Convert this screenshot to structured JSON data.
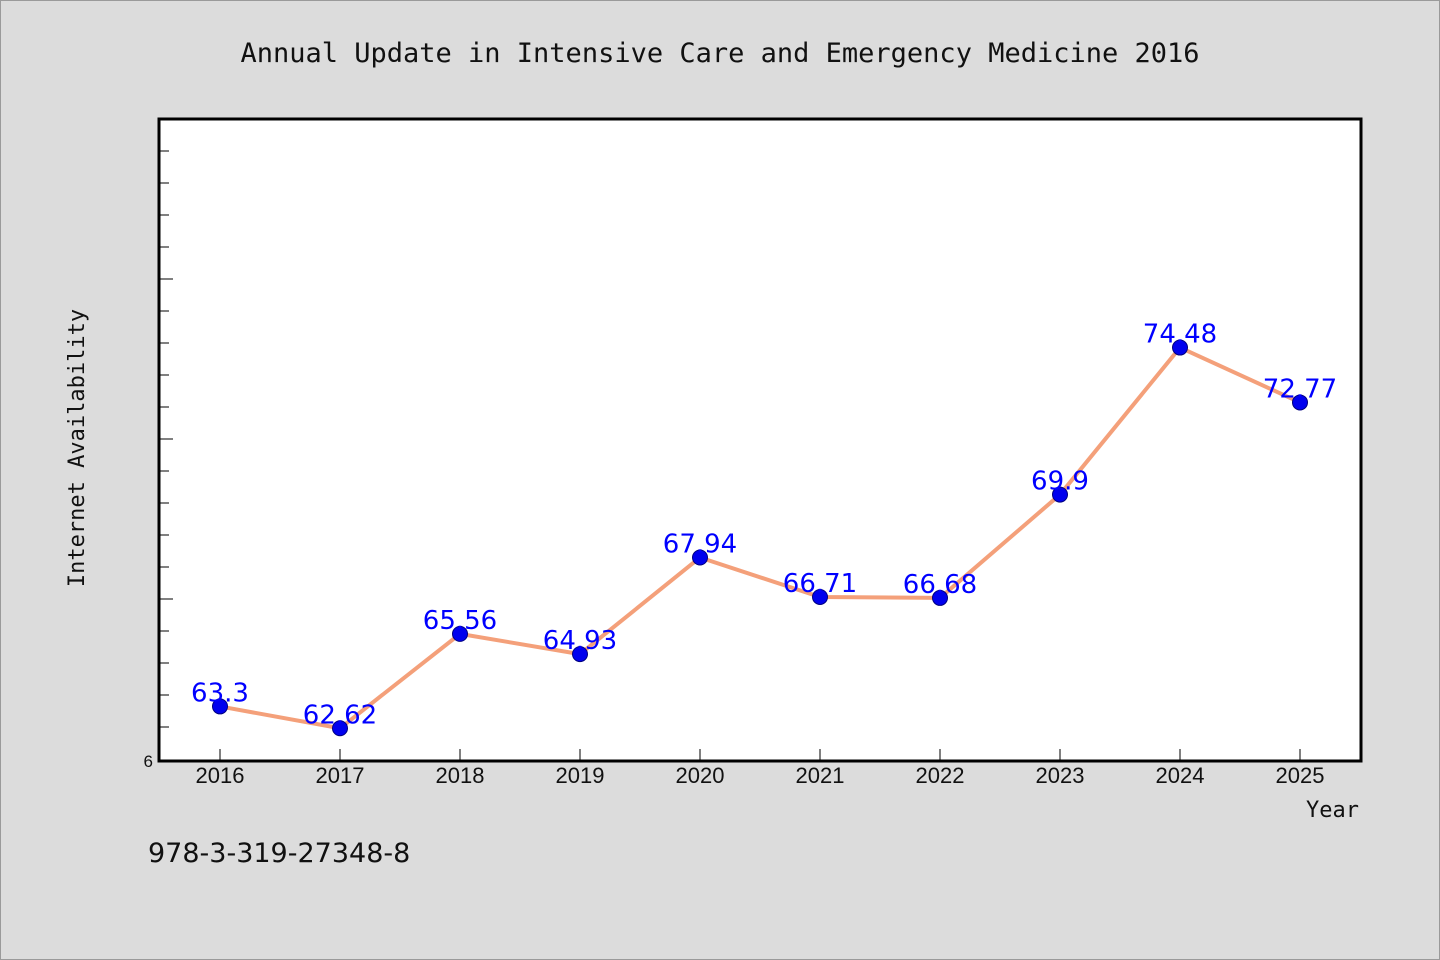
{
  "chart_data": {
    "type": "line",
    "title": "Annual Update in Intensive Care and Emergency Medicine 2016",
    "xlabel": "Year",
    "ylabel": "Internet Availability",
    "categories": [
      "2016",
      "2017",
      "2018",
      "2019",
      "2020",
      "2021",
      "2022",
      "2023",
      "2024",
      "2025"
    ],
    "series": [
      {
        "values": [
          63.3,
          62.62,
          65.56,
          64.93,
          67.94,
          66.71,
          66.68,
          69.9,
          74.48,
          72.77
        ],
        "labels": [
          "63.3",
          "62.62",
          "65.56",
          "64.93",
          "67.94",
          "66.71",
          "66.68",
          "69.9",
          "74.48",
          "72.77"
        ],
        "line_color": "#f4a07a",
        "marker_color": "#0000ee",
        "label_color": "#0000ff"
      }
    ],
    "ylim": [
      61.6,
      81.6
    ],
    "y_tick_labels": [
      {
        "value": 61.6,
        "label": "6"
      }
    ],
    "grid": false
  },
  "footer": {
    "isbn": "978-3-319-27348-8"
  }
}
